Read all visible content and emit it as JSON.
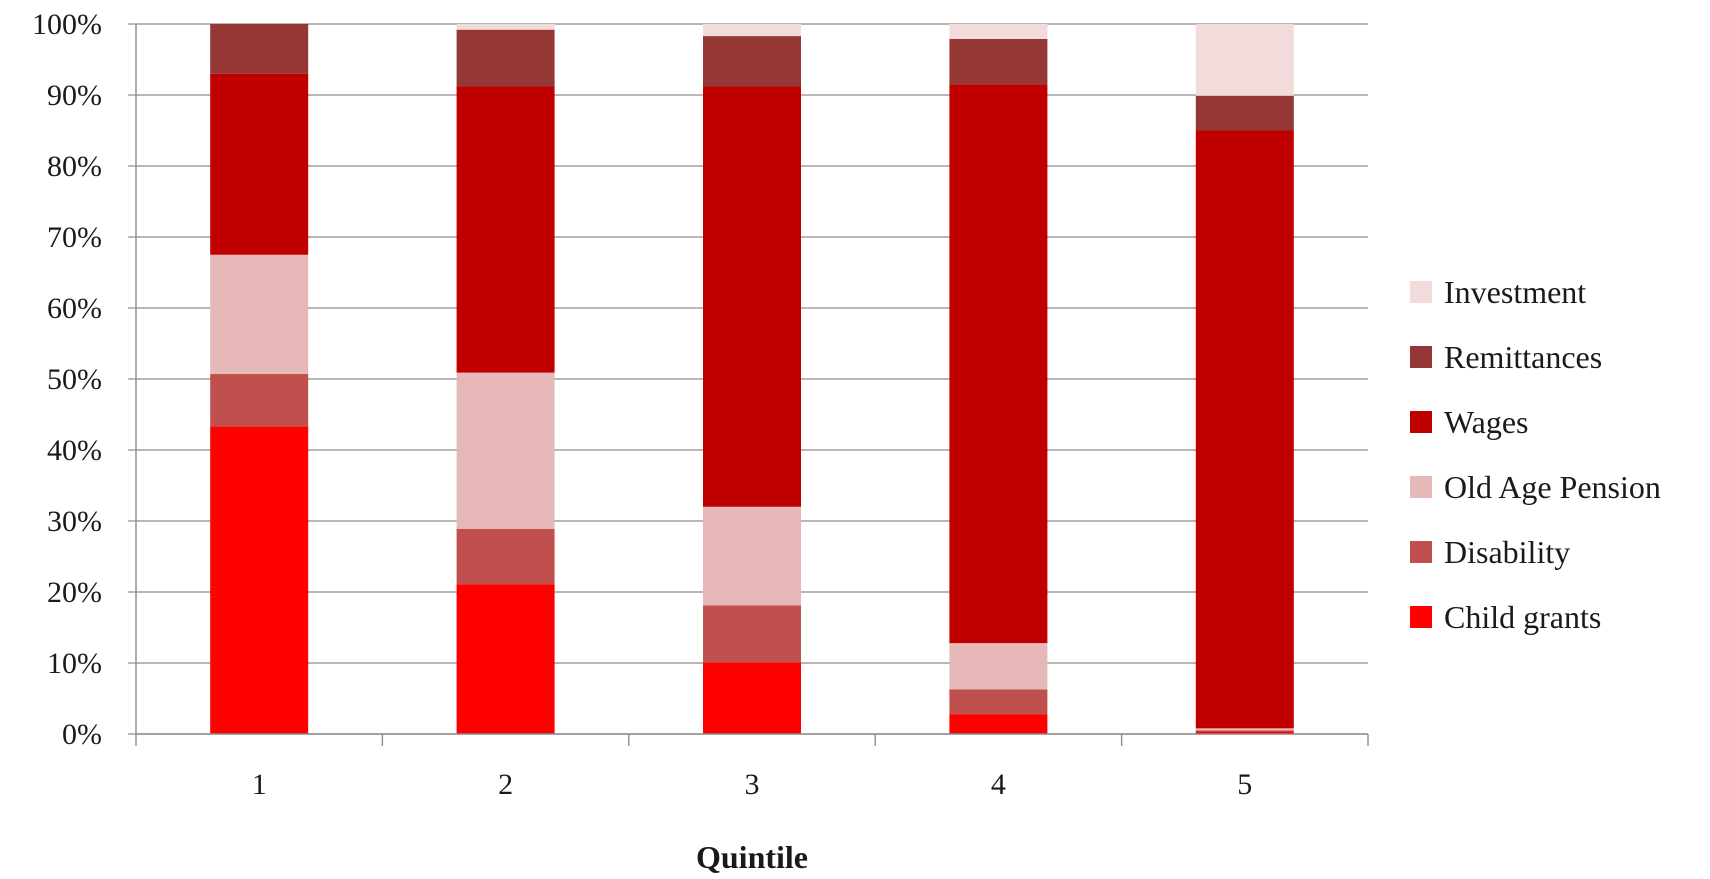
{
  "chart_data": {
    "type": "bar",
    "stacked": true,
    "percent_stacked": true,
    "title": "",
    "xlabel": "Quintile",
    "ylabel": "",
    "ylim": [
      0,
      100
    ],
    "yticks": [
      "0%",
      "10%",
      "20%",
      "30%",
      "40%",
      "50%",
      "60%",
      "70%",
      "80%",
      "90%",
      "100%"
    ],
    "categories": [
      "1",
      "2",
      "3",
      "4",
      "5"
    ],
    "grid": true,
    "legend_position": "right",
    "series": [
      {
        "name": "Child grants",
        "color": "#ff0000",
        "values": [
          43.3,
          21.1,
          10.1,
          2.8,
          0.4
        ]
      },
      {
        "name": "Disability",
        "color": "#c0504d",
        "values": [
          7.4,
          7.8,
          8.0,
          3.5,
          0.1
        ]
      },
      {
        "name": "Old Age Pension",
        "color": "#e6b8b7",
        "values": [
          16.8,
          22.0,
          13.9,
          6.5,
          0.3
        ]
      },
      {
        "name": "Wages",
        "color": "#c00000",
        "values": [
          25.5,
          40.3,
          59.2,
          78.7,
          84.2
        ]
      },
      {
        "name": "Remittances",
        "color": "#953735",
        "values": [
          7.0,
          8.0,
          7.1,
          6.4,
          4.9
        ]
      },
      {
        "name": "Investment",
        "color": "#f2dcdb",
        "values": [
          0.0,
          0.8,
          1.7,
          2.1,
          10.1
        ]
      }
    ]
  }
}
